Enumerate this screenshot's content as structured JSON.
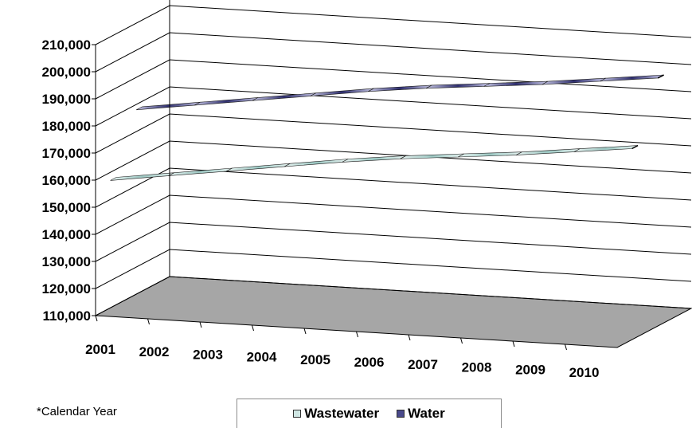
{
  "chart_data": {
    "type": "area",
    "view": "3d-ribbon",
    "categories": [
      "2001",
      "2002",
      "2003",
      "2004",
      "2005",
      "2006",
      "2007",
      "2008",
      "2009",
      "2010"
    ],
    "yticks": [
      "110,000",
      "120,000",
      "130,000",
      "140,000",
      "150,000",
      "160,000",
      "170,000",
      "180,000",
      "190,000",
      "200,000",
      "210,000"
    ],
    "ylim": [
      110000,
      210000
    ],
    "series": [
      {
        "name": "Wastewater",
        "values": [
          157000,
          160000,
          163000,
          166000,
          169000,
          171500,
          173500,
          175500,
          178000,
          180500
        ],
        "color": "#cfe6e3"
      },
      {
        "name": "Water",
        "values": [
          178000,
          181000,
          184000,
          187000,
          190000,
          192500,
          194500,
          196500,
          199000,
          201500
        ],
        "color": "#4a4a8c"
      }
    ],
    "grid": true,
    "legend": "bottom",
    "floor_color": "#a6a6a6"
  },
  "note": "*Calendar Year"
}
